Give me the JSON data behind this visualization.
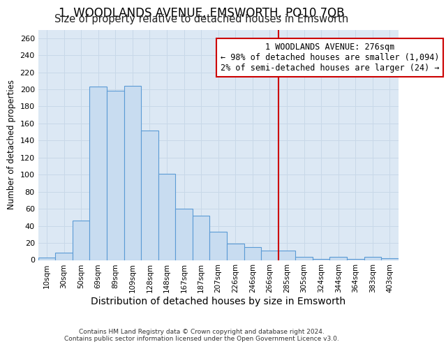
{
  "title": "1, WOODLANDS AVENUE, EMSWORTH, PO10 7QB",
  "subtitle": "Size of property relative to detached houses in Emsworth",
  "xlabel": "Distribution of detached houses by size in Emsworth",
  "ylabel": "Number of detached properties",
  "bar_labels": [
    "10sqm",
    "30sqm",
    "50sqm",
    "69sqm",
    "89sqm",
    "109sqm",
    "128sqm",
    "148sqm",
    "167sqm",
    "187sqm",
    "207sqm",
    "226sqm",
    "246sqm",
    "266sqm",
    "285sqm",
    "305sqm",
    "324sqm",
    "344sqm",
    "364sqm",
    "383sqm",
    "403sqm"
  ],
  "bar_values": [
    3,
    9,
    46,
    203,
    198,
    204,
    152,
    101,
    60,
    52,
    33,
    19,
    15,
    11,
    11,
    4,
    1,
    4,
    1,
    4,
    2
  ],
  "bar_color": "#c8dcf0",
  "bar_edge_color": "#5b9bd5",
  "grid_color": "#c8d8e8",
  "vline_x": 14.0,
  "vline_color": "#cc0000",
  "annotation_text": "1 WOODLANDS AVENUE: 276sqm\n← 98% of detached houses are smaller (1,094)\n2% of semi-detached houses are larger (24) →",
  "annotation_box_facecolor": "white",
  "annotation_box_edgecolor": "#cc0000",
  "footer_line1": "Contains HM Land Registry data © Crown copyright and database right 2024.",
  "footer_line2": "Contains public sector information licensed under the Open Government Licence v3.0.",
  "ylim": [
    0,
    270
  ],
  "yticks": [
    0,
    20,
    40,
    60,
    80,
    100,
    120,
    140,
    160,
    180,
    200,
    220,
    240,
    260
  ],
  "plot_bg_color": "#dce8f4",
  "title_fontsize": 12,
  "subtitle_fontsize": 10.5,
  "ann_fontsize": 8.5,
  "xlabel_fontsize": 10,
  "ylabel_fontsize": 8.5,
  "tick_fontsize": 8,
  "xtick_fontsize": 7.5
}
